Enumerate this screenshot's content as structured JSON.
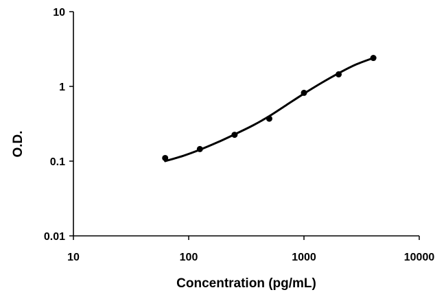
{
  "chart_data": {
    "type": "line",
    "title": "",
    "xlabel": "Concentration (pg/mL)",
    "ylabel": "O.D.",
    "xscale": "log",
    "yscale": "log",
    "xlim": [
      10,
      10000
    ],
    "ylim": [
      0.01,
      10
    ],
    "grid": false,
    "legend": "none",
    "x_ticks": [
      {
        "value": 10,
        "label": "10"
      },
      {
        "value": 100,
        "label": "100"
      },
      {
        "value": 1000,
        "label": "1000"
      },
      {
        "value": 10000,
        "label": "10000"
      }
    ],
    "y_ticks": [
      {
        "value": 0.01,
        "label": "0.01"
      },
      {
        "value": 0.1,
        "label": "0.1"
      },
      {
        "value": 1,
        "label": "1"
      },
      {
        "value": 10,
        "label": "10"
      }
    ],
    "series": [
      {
        "kind": "points",
        "x": [
          62.5,
          125,
          250,
          500,
          1000,
          2000,
          4000
        ],
        "y": [
          0.11,
          0.145,
          0.225,
          0.37,
          0.82,
          1.45,
          2.4
        ]
      },
      {
        "kind": "fit-curve",
        "x": [
          62.5,
          90,
          125,
          180,
          250,
          360,
          500,
          700,
          1000,
          1400,
          2000,
          2800,
          4000
        ],
        "y": [
          0.1,
          0.118,
          0.142,
          0.18,
          0.228,
          0.3,
          0.4,
          0.56,
          0.8,
          1.1,
          1.5,
          1.95,
          2.4
        ]
      }
    ],
    "colors": {
      "line": "#000000",
      "points": "#000000",
      "axis": "#000000",
      "background": "#ffffff"
    }
  }
}
